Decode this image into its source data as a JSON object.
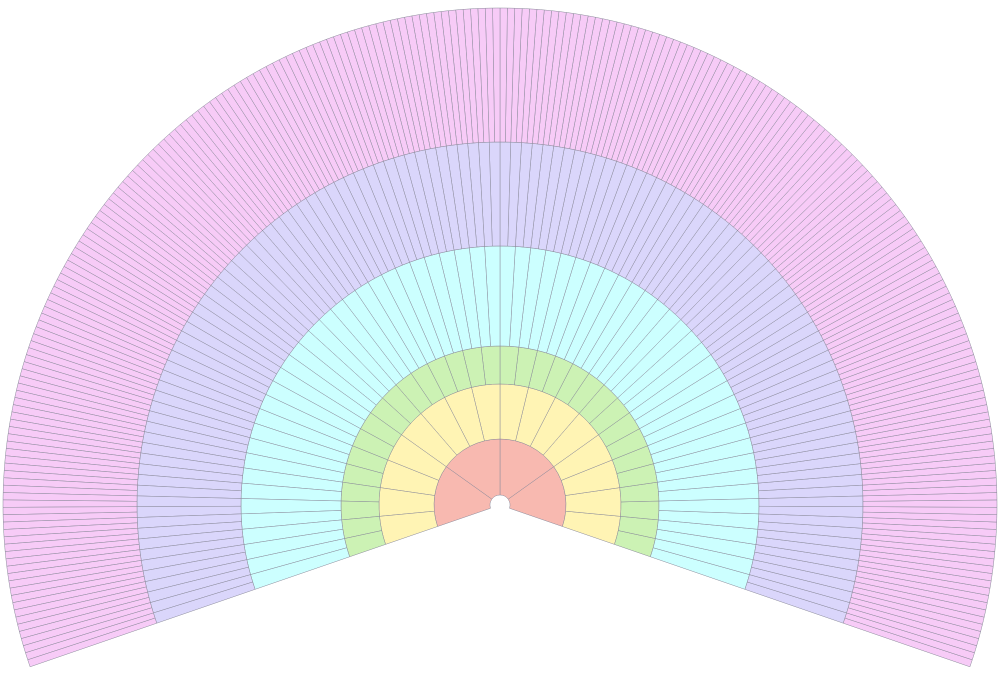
{
  "rings": [
    {
      "color": "#f8b9b0"
    },
    {
      "color": "#fff4b4"
    },
    {
      "color": "#ccf2b4"
    },
    {
      "color": "#ccffff"
    },
    {
      "color": "#dad6fb"
    },
    {
      "color": "#f7cbf7"
    }
  ]
}
